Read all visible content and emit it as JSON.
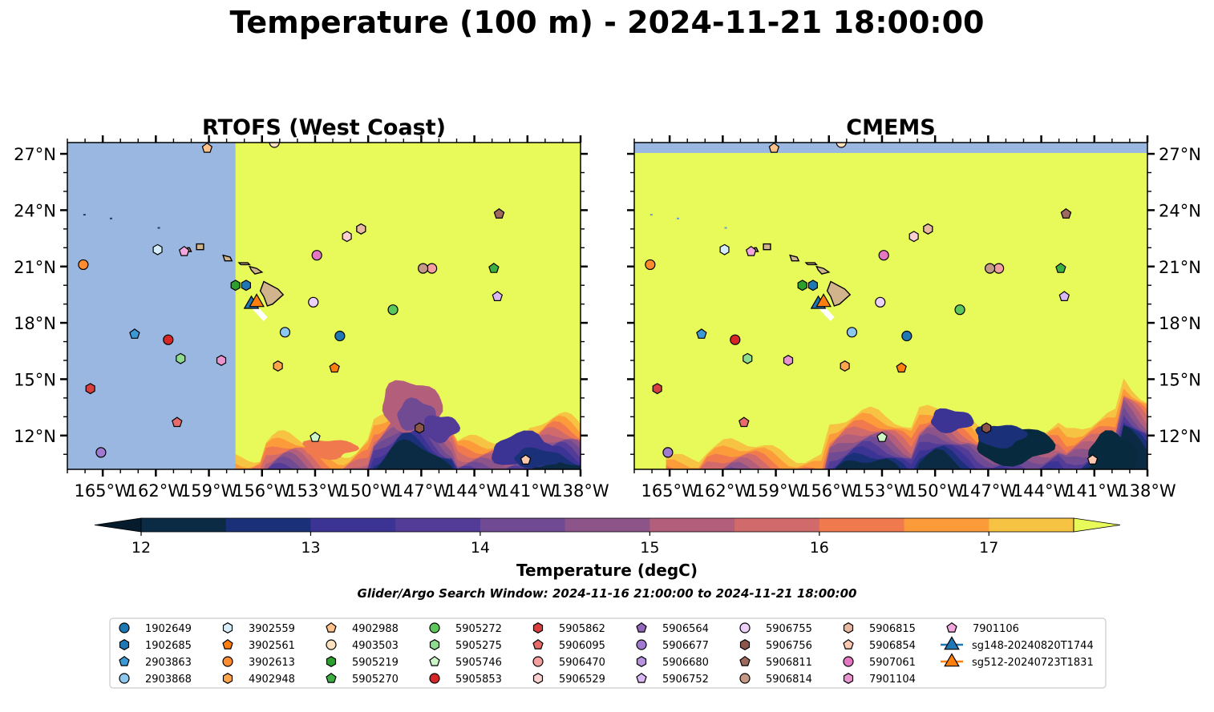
{
  "title": "Temperature (100 m) - 2024-11-21 18:00:00",
  "colors": {
    "warm": "#e8f95a",
    "land_mask": "#99b7e0",
    "island": "#d2b48c",
    "lowcol": "#082a3f"
  },
  "chart_data": {
    "type": "contour-map",
    "panels": [
      {
        "title": "RTOFS (West Coast)",
        "domain_edge_lon": -157.5,
        "coast_band": false
      },
      {
        "title": "CMEMS",
        "domain_edge_lon": null,
        "coast_band": true
      }
    ],
    "lon_range": [
      -167,
      -138
    ],
    "lat_range": [
      10.2,
      27.6
    ],
    "xticks": [
      -165,
      -162,
      -159,
      -156,
      -153,
      -150,
      -147,
      -144,
      -141,
      -138
    ],
    "xtick_labels": [
      "165°W",
      "162°W",
      "159°W",
      "156°W",
      "153°W",
      "150°W",
      "147°W",
      "144°W",
      "141°W",
      "138°W"
    ],
    "yticks": [
      12,
      15,
      18,
      21,
      24,
      27
    ],
    "ytick_labels": [
      "12°N",
      "15°N",
      "18°N",
      "21°N",
      "24°N",
      "27°N"
    ],
    "colorbar": {
      "label": "Temperature (degC)",
      "range": [
        12,
        17.5
      ],
      "levels": [
        12,
        12.5,
        13,
        13.5,
        14,
        14.5,
        15,
        15.5,
        16,
        16.5,
        17,
        17.5
      ],
      "colors": [
        "#0b2a44",
        "#1a3078",
        "#3b3494",
        "#533c98",
        "#704b93",
        "#8c5488",
        "#b35f7c",
        "#d06a6b",
        "#f07a4e",
        "#fb9b3a",
        "#f6c342"
      ],
      "ticks": [
        12,
        13,
        14,
        15,
        16,
        17
      ],
      "tick_labels": [
        "12",
        "13",
        "14",
        "15",
        "16",
        "17"
      ],
      "extend": "both"
    },
    "search_window": "Glider/Argo Search Window: 2024-11-16 21:00:00 to 2024-11-21 18:00:00",
    "platforms": [
      {
        "id": "1902649",
        "marker": "o",
        "color": "#1f77b4",
        "lon": -151.6,
        "lat": 17.3
      },
      {
        "id": "1902685",
        "marker": "h",
        "color": "#1f77b4",
        "lon": -156.9,
        "lat": 20.0
      },
      {
        "id": "2903863",
        "marker": "p",
        "color": "#3b9ad6",
        "lon": -163.2,
        "lat": 17.4
      },
      {
        "id": "2903868",
        "marker": "o",
        "color": "#8cc8ee",
        "lon": -154.7,
        "lat": 17.5
      },
      {
        "id": "3902559",
        "marker": "h",
        "color": "#d6eefa",
        "lon": -161.9,
        "lat": 21.9
      },
      {
        "id": "3902561",
        "marker": "p",
        "color": "#ff7f0e",
        "lon": -151.9,
        "lat": 15.6
      },
      {
        "id": "3902613",
        "marker": "o",
        "color": "#ff8c2e",
        "lon": -166.1,
        "lat": 21.1
      },
      {
        "id": "4902948",
        "marker": "h",
        "color": "#ffa64d",
        "lon": -155.1,
        "lat": 15.7
      },
      {
        "id": "4902988",
        "marker": "p",
        "color": "#ffc28a",
        "lon": -159.1,
        "lat": 27.3
      },
      {
        "id": "4903503",
        "marker": "o",
        "color": "#ffe0bf",
        "lon": -155.3,
        "lat": 27.6
      },
      {
        "id": "5905219",
        "marker": "h",
        "color": "#2ca02c",
        "lon": -157.5,
        "lat": 20.0
      },
      {
        "id": "5905270",
        "marker": "p",
        "color": "#3cb043",
        "lon": -142.9,
        "lat": 20.9
      },
      {
        "id": "5905272",
        "marker": "o",
        "color": "#5cc85c",
        "lon": -148.6,
        "lat": 18.7
      },
      {
        "id": "5905275",
        "marker": "h",
        "color": "#8edc8e",
        "lon": -160.6,
        "lat": 16.1
      },
      {
        "id": "5905746",
        "marker": "p",
        "color": "#ccf5c8",
        "lon": -153.0,
        "lat": 11.9
      },
      {
        "id": "5905853",
        "marker": "o",
        "color": "#d62728",
        "lon": -161.3,
        "lat": 17.1
      },
      {
        "id": "5905862",
        "marker": "h",
        "color": "#d84040",
        "lon": -165.7,
        "lat": 14.5
      },
      {
        "id": "5906095",
        "marker": "p",
        "color": "#e86a6a",
        "lon": -160.8,
        "lat": 12.7
      },
      {
        "id": "5906470",
        "marker": "o",
        "color": "#f4a0a0",
        "lon": -146.4,
        "lat": 20.9
      },
      {
        "id": "5906529",
        "marker": "h",
        "color": "#fad0d0",
        "lon": -151.2,
        "lat": 22.6
      },
      {
        "id": "5906564",
        "marker": "p",
        "color": "#9467bd",
        "lon": -142.6,
        "lat": 23.8
      },
      {
        "id": "5906677",
        "marker": "o",
        "color": "#a07ad0",
        "lon": -165.1,
        "lat": 11.1
      },
      {
        "id": "5906680",
        "marker": "h",
        "color": "#b894e0",
        "lon": -150.4,
        "lat": 23.0
      },
      {
        "id": "5906752",
        "marker": "p",
        "color": "#d9b8f4",
        "lon": -142.7,
        "lat": 19.4
      },
      {
        "id": "5906755",
        "marker": "o",
        "color": "#ecd2fb",
        "lon": -153.1,
        "lat": 19.1
      },
      {
        "id": "5906756",
        "marker": "h",
        "color": "#8c564b",
        "lon": -147.1,
        "lat": 12.4
      },
      {
        "id": "5906811",
        "marker": "p",
        "color": "#a0695f",
        "lon": -142.6,
        "lat": 23.8
      },
      {
        "id": "5906814",
        "marker": "o",
        "color": "#c49a87",
        "lon": -146.9,
        "lat": 20.9
      },
      {
        "id": "5906815",
        "marker": "h",
        "color": "#e8b8a0",
        "lon": -150.4,
        "lat": 23.0
      },
      {
        "id": "5906854",
        "marker": "p",
        "color": "#fcc8b0",
        "lon": -141.1,
        "lat": 10.7
      },
      {
        "id": "5907061",
        "marker": "o",
        "color": "#e377c2",
        "lon": -152.9,
        "lat": 21.6
      },
      {
        "id": "7901104",
        "marker": "h",
        "color": "#e895cf",
        "lon": -158.3,
        "lat": 16.0
      },
      {
        "id": "7901106",
        "marker": "p",
        "color": "#f2a8de",
        "lon": -160.4,
        "lat": 21.8
      },
      {
        "id": "sg148-20240820T1744",
        "marker": "^",
        "color": "#1f77b4",
        "lon": -156.6,
        "lat": 19.1
      },
      {
        "id": "sg512-20240723T1831",
        "marker": "^",
        "color": "#ff7f0e",
        "lon": -156.3,
        "lat": 19.2
      }
    ]
  }
}
